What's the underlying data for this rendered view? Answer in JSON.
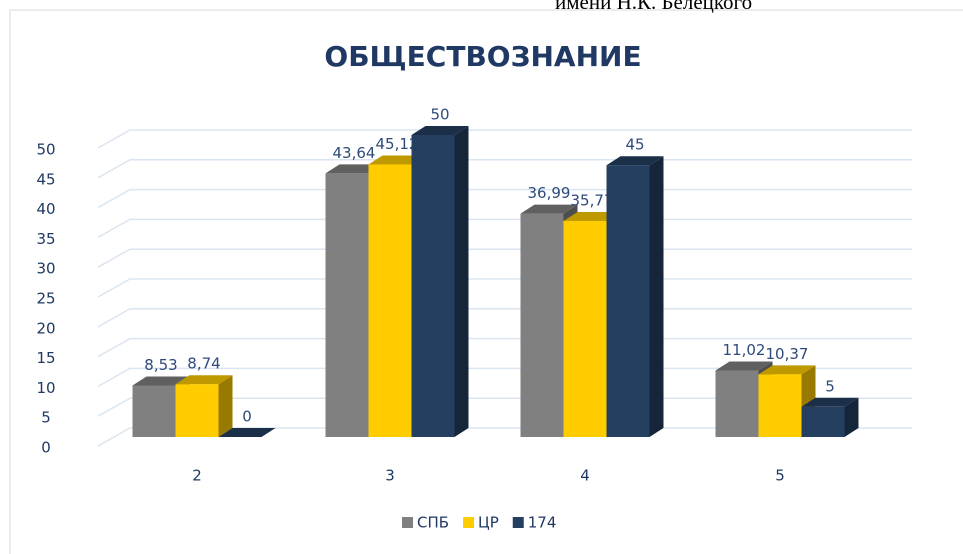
{
  "caption": "имени Н.К. Белецкого",
  "chart_data": {
    "type": "bar3d",
    "title": "ОБЩЕСТВОЗНАНИЕ",
    "categories": [
      "2",
      "3",
      "4",
      "5"
    ],
    "series": [
      {
        "name": "СПБ",
        "color": "#808080",
        "values": [
          8.53,
          43.64,
          36.99,
          11.02
        ],
        "value_labels": [
          "8,53",
          "43,64",
          "36,99",
          "11,02"
        ]
      },
      {
        "name": "ЦР",
        "color": "#ffcc00",
        "values": [
          8.74,
          45.12,
          35.77,
          10.37
        ],
        "value_labels": [
          "8,74",
          "45,12",
          "35,77",
          "10,37"
        ]
      },
      {
        "name": "174",
        "color": "#243f60",
        "values": [
          0,
          50,
          45,
          5
        ]
      }
    ],
    "ylim": [
      0,
      50
    ],
    "yticks": [
      0,
      5,
      10,
      15,
      20,
      25,
      30,
      35,
      40,
      45,
      50
    ],
    "grid": true,
    "legend": "bottom"
  }
}
